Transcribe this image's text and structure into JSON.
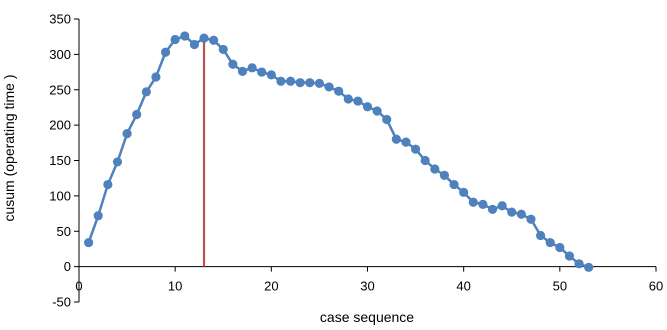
{
  "chart_data": {
    "type": "line",
    "title": "",
    "xlabel": "case sequence",
    "ylabel": "cusum (operating time )",
    "xlim": [
      0,
      60
    ],
    "ylim": [
      -50,
      350
    ],
    "x_ticks": [
      0,
      10,
      20,
      30,
      40,
      50,
      60
    ],
    "y_ticks": [
      -50,
      0,
      50,
      100,
      150,
      200,
      250,
      300,
      350
    ],
    "grid": false,
    "legend": "none",
    "series": [
      {
        "color": "#4F81BD",
        "marker": "circle",
        "x": [
          1,
          2,
          3,
          4,
          5,
          6,
          7,
          8,
          9,
          10,
          11,
          12,
          13,
          14,
          15,
          16,
          17,
          18,
          19,
          20,
          21,
          22,
          23,
          24,
          25,
          26,
          27,
          28,
          29,
          30,
          31,
          32,
          33,
          34,
          35,
          36,
          37,
          38,
          39,
          40,
          41,
          42,
          43,
          44,
          45,
          46,
          47,
          48,
          49,
          50,
          51,
          52,
          53
        ],
        "y": [
          34,
          72,
          116,
          148,
          188,
          215,
          247,
          268,
          303,
          321,
          326,
          314,
          323,
          320,
          307,
          286,
          276,
          281,
          275,
          271,
          262,
          262,
          260,
          260,
          259,
          254,
          248,
          237,
          234,
          226,
          220,
          208,
          180,
          176,
          166,
          150,
          138,
          129,
          116,
          105,
          91,
          88,
          81,
          86,
          77,
          74,
          67,
          44,
          34,
          27,
          15,
          4,
          -1
        ]
      }
    ],
    "reference_line": {
      "x": 13,
      "color": "#C0504D"
    }
  }
}
